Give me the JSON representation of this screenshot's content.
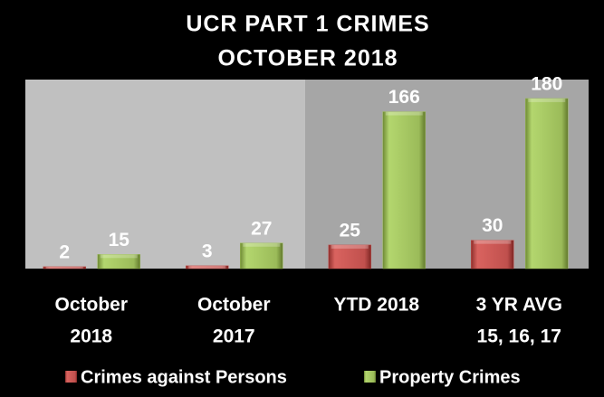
{
  "chart_data": {
    "type": "bar",
    "title": "UCR PART 1 CRIMES",
    "subtitle": "OCTOBER 2018",
    "categories": [
      [
        "October",
        "2018"
      ],
      [
        "October",
        "2017"
      ],
      [
        "YTD 2018"
      ],
      [
        "3 YR AVG",
        "15, 16, 17"
      ]
    ],
    "series": [
      {
        "name": "Crimes against Persons",
        "color": "#c0504d",
        "values": [
          2,
          3,
          25,
          30
        ]
      },
      {
        "name": "Property Crimes",
        "color": "#9bbb59",
        "values": [
          15,
          27,
          166,
          180
        ]
      }
    ],
    "ylim": [
      0,
      200
    ],
    "legend": "bottom"
  }
}
